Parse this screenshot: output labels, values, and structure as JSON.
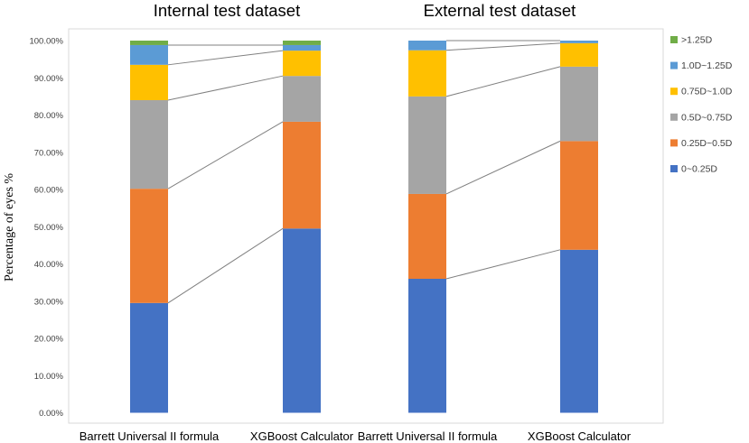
{
  "chart_data": {
    "type": "bar",
    "stacked": true,
    "ylabel": "Percentage of eyes %",
    "ylim": [
      0,
      100
    ],
    "ytick_step": 10,
    "ytick_format": "percent_2dp",
    "legend_position": "right",
    "panels": [
      {
        "title": "Internal test dataset",
        "categories": [
          "Barrett Universal II formula",
          "XGBoost Calculator"
        ]
      },
      {
        "title": "External test dataset",
        "categories": [
          "Barrett Universal II formula",
          "XGBoost Calculator"
        ]
      }
    ],
    "categories": [
      "Barrett Universal II formula",
      "XGBoost Calculator",
      "Barrett Universal II formula",
      "XGBoost Calculator"
    ],
    "series": [
      {
        "name": "0~0.25D",
        "color": "#4472C4",
        "values": [
          29.5,
          49.5,
          36.0,
          43.8
        ]
      },
      {
        "name": "0.25D~0.5D",
        "color": "#ED7D31",
        "values": [
          30.7,
          28.7,
          22.8,
          29.2
        ]
      },
      {
        "name": "0.5D~0.75D",
        "color": "#A5A5A5",
        "values": [
          23.8,
          12.3,
          26.2,
          20.0
        ]
      },
      {
        "name": "0.75D~1.0D",
        "color": "#FFC000",
        "values": [
          9.5,
          6.8,
          12.4,
          6.3
        ]
      },
      {
        "name": "1.0D~1.25D",
        "color": "#5B9BD5",
        "values": [
          5.3,
          1.5,
          2.6,
          0.7
        ]
      },
      {
        "name": ">1.25D",
        "color": "#70AD47",
        "values": [
          1.2,
          1.2,
          0.0,
          0.0
        ]
      }
    ]
  }
}
